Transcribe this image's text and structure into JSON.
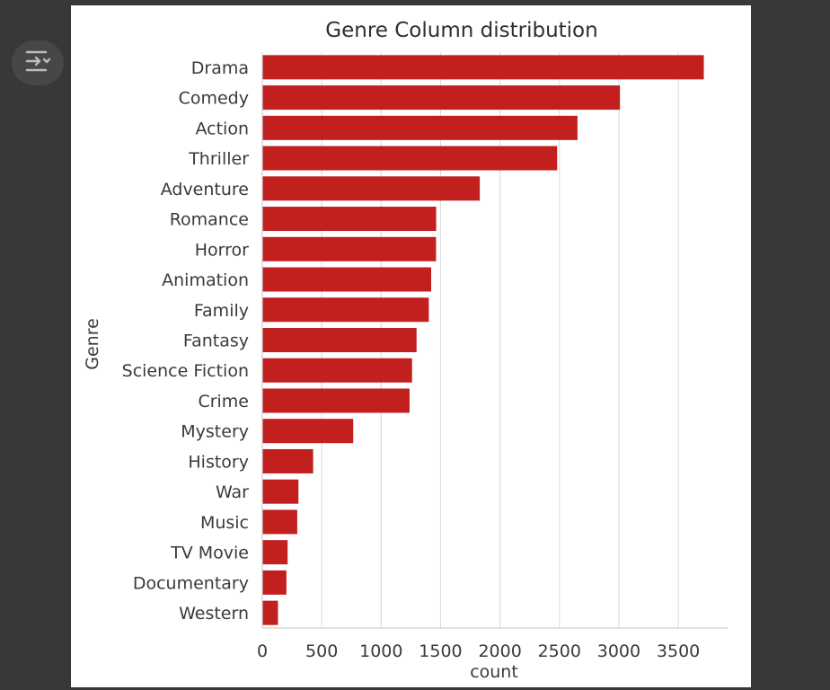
{
  "ui": {
    "toggle_icon": "collapse-output-icon"
  },
  "chart_data": {
    "type": "bar",
    "orientation": "horizontal",
    "title": "Genre Column distribution",
    "xlabel": "count",
    "ylabel": "Genre",
    "categories": [
      "Drama",
      "Comedy",
      "Action",
      "Thriller",
      "Adventure",
      "Romance",
      "Horror",
      "Animation",
      "Family",
      "Fantasy",
      "Science Fiction",
      "Crime",
      "Mystery",
      "History",
      "War",
      "Music",
      "TV Movie",
      "Documentary",
      "Western"
    ],
    "values": [
      3715,
      3009,
      2652,
      2481,
      1830,
      1463,
      1462,
      1421,
      1401,
      1298,
      1260,
      1239,
      765,
      428,
      304,
      294,
      213,
      203,
      132
    ],
    "xticks": [
      0,
      500,
      1000,
      1500,
      2000,
      2500,
      3000,
      3500
    ],
    "xlim": [
      0,
      3915
    ],
    "grid": "vertical",
    "bar_color": "#c21f1f"
  }
}
